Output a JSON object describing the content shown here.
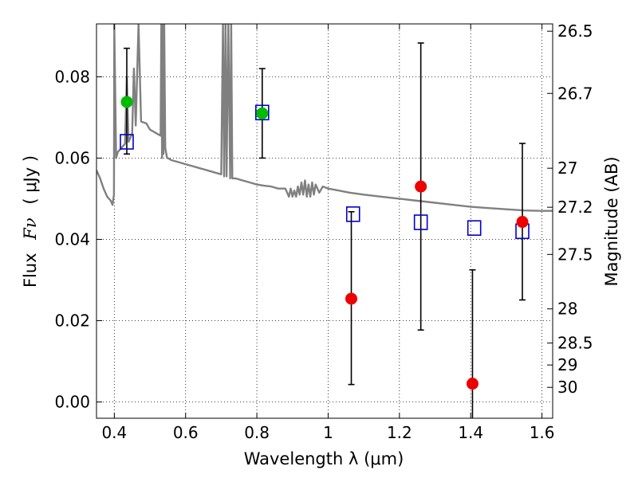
{
  "chart_data": {
    "type": "scatter",
    "xlabel": "Wavelength  λ (μm)",
    "ylabel": "Flux",
    "ylabel_symbol": "Fν",
    "ylabel_unit": "( μJy )",
    "y2label": "Magnitude (AB)",
    "xlim": [
      0.35,
      1.63
    ],
    "ylim": [
      -0.004,
      0.093
    ],
    "grid": true,
    "x_ticks": [
      0.4,
      0.6,
      0.8,
      1.0,
      1.2,
      1.4,
      1.6
    ],
    "x_tick_labels": [
      "0.4",
      "0.6",
      "0.8",
      "1",
      "1.2",
      "1.4",
      "1.6"
    ],
    "y_ticks": [
      0.0,
      0.02,
      0.04,
      0.06,
      0.08
    ],
    "y_tick_labels": [
      "0.00",
      "0.02",
      "0.04",
      "0.06",
      "0.08"
    ],
    "mag_ticks": [
      {
        "label": "26.5",
        "flux": 0.0912
      },
      {
        "label": "26.7",
        "flux": 0.0759
      },
      {
        "label": "27",
        "flux": 0.0575
      },
      {
        "label": "27.2",
        "flux": 0.0479
      },
      {
        "label": "27.5",
        "flux": 0.0363
      },
      {
        "label": "28",
        "flux": 0.0229
      },
      {
        "label": "28.5",
        "flux": 0.0145
      },
      {
        "label": "29",
        "flux": 0.0091
      },
      {
        "label": "30",
        "flux": 0.0036
      }
    ],
    "colors": {
      "sed": "#808080",
      "model": "#0000cc",
      "detection": "#00bb00",
      "upper": "#ee0000",
      "errorbar": "#000000"
    },
    "sed_curve": [
      [
        0.35,
        0.057
      ],
      [
        0.36,
        0.055
      ],
      [
        0.37,
        0.0525
      ],
      [
        0.38,
        0.0505
      ],
      [
        0.39,
        0.0495
      ],
      [
        0.395,
        0.0485
      ],
      [
        0.399,
        0.051
      ],
      [
        0.4,
        0.093
      ],
      [
        0.405,
        0.06
      ],
      [
        0.41,
        0.0615
      ],
      [
        0.42,
        0.0625
      ],
      [
        0.43,
        0.0635
      ],
      [
        0.435,
        0.08
      ],
      [
        0.44,
        0.064
      ],
      [
        0.45,
        0.066
      ],
      [
        0.455,
        0.082
      ],
      [
        0.46,
        0.068
      ],
      [
        0.468,
        0.093
      ],
      [
        0.475,
        0.069
      ],
      [
        0.49,
        0.0685
      ],
      [
        0.5,
        0.067
      ],
      [
        0.51,
        0.0665
      ],
      [
        0.52,
        0.066
      ],
      [
        0.53,
        0.0655
      ],
      [
        0.532,
        0.093
      ],
      [
        0.534,
        0.06
      ],
      [
        0.536,
        0.093
      ],
      [
        0.538,
        0.061
      ],
      [
        0.54,
        0.093
      ],
      [
        0.543,
        0.0625
      ],
      [
        0.548,
        0.06
      ],
      [
        0.55,
        0.06
      ],
      [
        0.56,
        0.0595
      ],
      [
        0.58,
        0.059
      ],
      [
        0.6,
        0.0585
      ],
      [
        0.62,
        0.058
      ],
      [
        0.64,
        0.0575
      ],
      [
        0.66,
        0.057
      ],
      [
        0.68,
        0.0565
      ],
      [
        0.7,
        0.056
      ],
      [
        0.705,
        0.093
      ],
      [
        0.708,
        0.0555
      ],
      [
        0.712,
        0.093
      ],
      [
        0.715,
        0.0555
      ],
      [
        0.72,
        0.093
      ],
      [
        0.725,
        0.055
      ],
      [
        0.728,
        0.093
      ],
      [
        0.731,
        0.055
      ],
      [
        0.74,
        0.055
      ],
      [
        0.76,
        0.0545
      ],
      [
        0.78,
        0.054
      ],
      [
        0.8,
        0.0535
      ],
      [
        0.82,
        0.0532
      ],
      [
        0.84,
        0.053
      ],
      [
        0.86,
        0.0525
      ],
      [
        0.88,
        0.0525
      ],
      [
        0.89,
        0.0505
      ],
      [
        0.895,
        0.0525
      ],
      [
        0.9,
        0.0505
      ],
      [
        0.905,
        0.052
      ],
      [
        0.91,
        0.0505
      ],
      [
        0.915,
        0.053
      ],
      [
        0.92,
        0.051
      ],
      [
        0.925,
        0.054
      ],
      [
        0.93,
        0.051
      ],
      [
        0.935,
        0.0545
      ],
      [
        0.94,
        0.0505
      ],
      [
        0.945,
        0.0535
      ],
      [
        0.95,
        0.0505
      ],
      [
        0.955,
        0.054
      ],
      [
        0.96,
        0.051
      ],
      [
        0.965,
        0.0535
      ],
      [
        0.975,
        0.0515
      ],
      [
        0.985,
        0.053
      ],
      [
        1.0,
        0.0525
      ],
      [
        1.03,
        0.052
      ],
      [
        1.06,
        0.0515
      ],
      [
        1.1,
        0.051
      ],
      [
        1.15,
        0.0505
      ],
      [
        1.2,
        0.05
      ],
      [
        1.25,
        0.0495
      ],
      [
        1.3,
        0.049
      ],
      [
        1.35,
        0.0485
      ],
      [
        1.4,
        0.048
      ],
      [
        1.45,
        0.0477
      ],
      [
        1.5,
        0.0474
      ],
      [
        1.55,
        0.0471
      ],
      [
        1.6,
        0.047
      ],
      [
        1.63,
        0.047
      ]
    ],
    "series": [
      {
        "marker": "open-square",
        "points": [
          {
            "x": 0.435,
            "y": 0.064
          },
          {
            "x": 0.815,
            "y": 0.0712
          },
          {
            "x": 1.07,
            "y": 0.0462
          },
          {
            "x": 1.26,
            "y": 0.0442
          },
          {
            "x": 1.41,
            "y": 0.0428
          },
          {
            "x": 1.545,
            "y": 0.042
          }
        ]
      },
      {
        "marker": "filled-circle-green",
        "points": [
          {
            "x": 0.435,
            "y": 0.0738,
            "ylo": 0.061,
            "yhi": 0.087
          },
          {
            "x": 0.815,
            "y": 0.071,
            "ylo": 0.06,
            "yhi": 0.082
          }
        ]
      },
      {
        "marker": "filled-circle-red",
        "points": [
          {
            "x": 1.065,
            "y": 0.0254,
            "ylo": 0.0043,
            "yhi": 0.0468
          },
          {
            "x": 1.26,
            "y": 0.053,
            "ylo": 0.0177,
            "yhi": 0.0883
          },
          {
            "x": 1.405,
            "y": 0.0045,
            "ylo": -0.004,
            "yhi": 0.0325
          },
          {
            "x": 1.545,
            "y": 0.0443,
            "ylo": 0.0251,
            "yhi": 0.0636
          }
        ]
      }
    ]
  }
}
